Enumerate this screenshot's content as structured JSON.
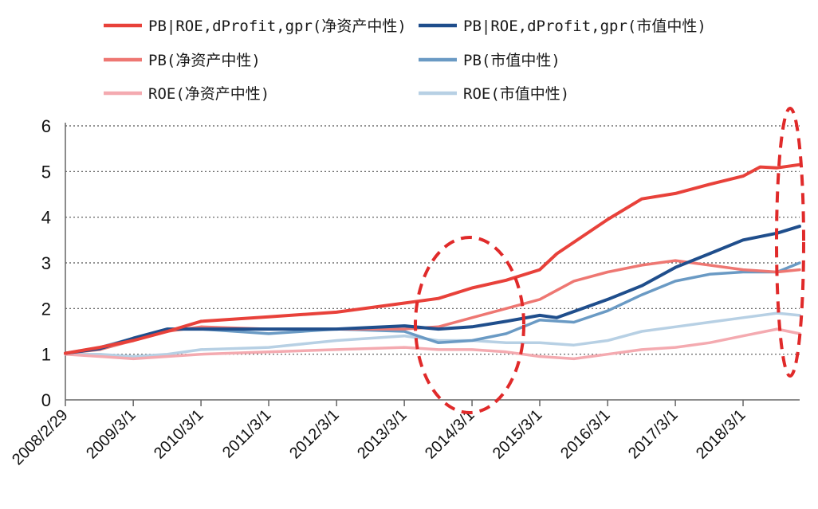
{
  "chart_data": {
    "type": "line",
    "x_labels": [
      "2008/2/29",
      "2009/3/1",
      "2010/3/1",
      "2011/3/1",
      "2012/3/1",
      "2013/3/1",
      "2014/3/1",
      "2015/3/1",
      "2016/3/1",
      "2017/3/1",
      "2018/3/1"
    ],
    "x_range": [
      "2008-02-29",
      "2018-12-31"
    ],
    "y_ticks": [
      "0",
      "1",
      "2",
      "3",
      "4",
      "5",
      "6"
    ],
    "ylim": [
      0,
      6
    ],
    "grid": "horizontal dotted",
    "legend_position": "top",
    "series": [
      {
        "name": "PB|ROE,dProfit,gpr(净资产中性)",
        "color": "#e8413a",
        "width": 4,
        "x": [
          "2008-02-29",
          "2008-09-01",
          "2009-03-01",
          "2009-09-01",
          "2010-03-01",
          "2011-03-01",
          "2012-03-01",
          "2013-03-01",
          "2013-09-01",
          "2014-03-01",
          "2014-09-01",
          "2015-03-01",
          "2015-06-01",
          "2016-03-01",
          "2016-09-01",
          "2017-03-01",
          "2017-09-01",
          "2018-03-01",
          "2018-06-01",
          "2018-09-01",
          "2018-12-31"
        ],
        "values": [
          1.02,
          1.15,
          1.3,
          1.5,
          1.72,
          1.82,
          1.92,
          2.12,
          2.22,
          2.45,
          2.62,
          2.85,
          3.2,
          3.95,
          4.4,
          4.52,
          4.72,
          4.9,
          5.1,
          5.08,
          5.15
        ]
      },
      {
        "name": "PB|ROE,dProfit,gpr(市值中性)",
        "color": "#1f4e8c",
        "width": 4,
        "x": [
          "2008-02-29",
          "2008-09-01",
          "2009-03-01",
          "2009-09-01",
          "2010-03-01",
          "2011-03-01",
          "2012-03-01",
          "2013-03-01",
          "2013-09-01",
          "2014-03-01",
          "2014-09-01",
          "2015-03-01",
          "2015-06-01",
          "2016-03-01",
          "2016-09-01",
          "2017-03-01",
          "2017-09-01",
          "2018-03-01",
          "2018-09-01",
          "2018-12-31"
        ],
        "values": [
          1.02,
          1.12,
          1.35,
          1.55,
          1.55,
          1.55,
          1.55,
          1.62,
          1.55,
          1.6,
          1.72,
          1.85,
          1.8,
          2.2,
          2.5,
          2.9,
          3.2,
          3.5,
          3.65,
          3.8
        ]
      },
      {
        "name": "PB(净资产中性)",
        "color": "#ee7772",
        "width": 3.5,
        "x": [
          "2008-02-29",
          "2008-09-01",
          "2009-03-01",
          "2009-09-01",
          "2010-03-01",
          "2011-03-01",
          "2012-03-01",
          "2013-03-01",
          "2013-09-01",
          "2014-03-01",
          "2014-09-01",
          "2015-03-01",
          "2015-09-01",
          "2016-03-01",
          "2016-09-01",
          "2017-03-01",
          "2017-09-01",
          "2018-03-01",
          "2018-09-01",
          "2018-12-31"
        ],
        "values": [
          1.02,
          1.1,
          1.3,
          1.5,
          1.6,
          1.55,
          1.55,
          1.55,
          1.6,
          1.8,
          2.0,
          2.2,
          2.6,
          2.8,
          2.95,
          3.05,
          2.95,
          2.85,
          2.8,
          2.85
        ]
      },
      {
        "name": "PB(市值中性)",
        "color": "#6a9ac4",
        "width": 3.5,
        "x": [
          "2008-02-29",
          "2008-09-01",
          "2009-03-01",
          "2009-09-01",
          "2010-03-01",
          "2011-03-01",
          "2012-03-01",
          "2013-03-01",
          "2013-09-01",
          "2014-03-01",
          "2014-09-01",
          "2015-03-01",
          "2015-09-01",
          "2016-03-01",
          "2016-09-01",
          "2017-03-01",
          "2017-09-01",
          "2018-03-01",
          "2018-09-01",
          "2018-12-31"
        ],
        "values": [
          1.02,
          1.15,
          1.35,
          1.55,
          1.55,
          1.45,
          1.55,
          1.5,
          1.25,
          1.3,
          1.45,
          1.75,
          1.7,
          1.95,
          2.3,
          2.6,
          2.75,
          2.8,
          2.8,
          3.0
        ]
      },
      {
        "name": "ROE(净资产中性)",
        "color": "#f4aab0",
        "width": 3.5,
        "x": [
          "2008-02-29",
          "2008-09-01",
          "2009-03-01",
          "2009-09-01",
          "2010-03-01",
          "2011-03-01",
          "2012-03-01",
          "2013-03-01",
          "2013-09-01",
          "2014-03-01",
          "2014-09-01",
          "2015-03-01",
          "2015-09-01",
          "2016-03-01",
          "2016-09-01",
          "2017-03-01",
          "2017-09-01",
          "2018-03-01",
          "2018-09-01",
          "2018-12-31"
        ],
        "values": [
          1.0,
          0.95,
          0.9,
          0.95,
          1.0,
          1.05,
          1.1,
          1.15,
          1.1,
          1.1,
          1.05,
          0.95,
          0.9,
          1.0,
          1.1,
          1.15,
          1.25,
          1.4,
          1.55,
          1.45
        ]
      },
      {
        "name": "ROE(市值中性)",
        "color": "#b7d0e4",
        "width": 3.5,
        "x": [
          "2008-02-29",
          "2008-09-01",
          "2009-03-01",
          "2009-09-01",
          "2010-03-01",
          "2011-03-01",
          "2012-03-01",
          "2013-03-01",
          "2013-09-01",
          "2014-03-01",
          "2014-09-01",
          "2015-03-01",
          "2015-09-01",
          "2016-03-01",
          "2016-09-01",
          "2017-03-01",
          "2017-09-01",
          "2018-03-01",
          "2018-09-01",
          "2018-12-31"
        ],
        "values": [
          1.0,
          1.0,
          0.95,
          1.0,
          1.1,
          1.15,
          1.3,
          1.4,
          1.3,
          1.3,
          1.25,
          1.25,
          1.2,
          1.3,
          1.5,
          1.6,
          1.7,
          1.8,
          1.9,
          1.85
        ]
      }
    ],
    "annotations": [
      "dashed ellipse around 2014/3/1",
      "dashed ellipse around the latest values"
    ]
  }
}
